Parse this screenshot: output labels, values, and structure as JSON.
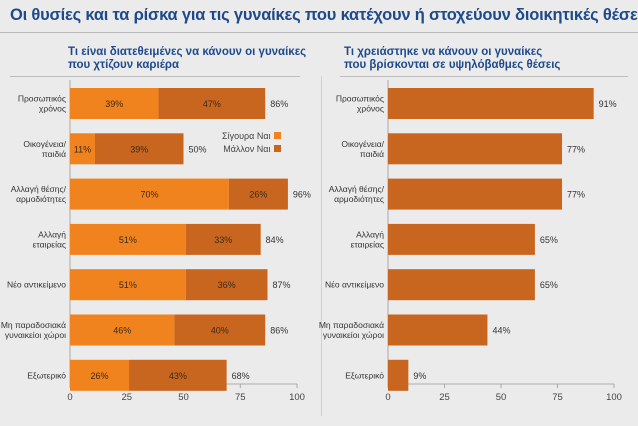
{
  "title": "Οι θυσίες και τα ρίσκα για τις γυναίκες που κατέχουν ή στοχεύουν διοικητικές θέσεις",
  "colors": {
    "primary": "#f0831e",
    "secondary": "#c8661f",
    "single": "#c8661f",
    "title": "#1e4a8c",
    "grid": "#9a9a9a"
  },
  "chart_data": [
    {
      "type": "bar",
      "orientation": "horizontal",
      "stacked": true,
      "title_lines": [
        "Τι είναι διατεθειμένες να κάνουν οι γυναίκες",
        "που χτίζουν καριέρα"
      ],
      "categories": [
        [
          "Προσωπικός",
          "χρόνος"
        ],
        [
          "Οικογένεια/",
          "παιδιά"
        ],
        [
          "Αλλαγή θέσης/",
          "αρμοδιότητες"
        ],
        [
          "Αλλαγή",
          "εταιρείας"
        ],
        [
          "Νέο αντικείμενο"
        ],
        [
          "Μη παραδοσιακά",
          "γυναικείοι χώροι"
        ],
        [
          "Εξωτερικό"
        ]
      ],
      "series": [
        {
          "name": "Σίγουρα Ναι",
          "values": [
            39,
            11,
            70,
            51,
            51,
            46,
            26
          ]
        },
        {
          "name": "Μάλλον Ναι",
          "values": [
            47,
            39,
            26,
            33,
            36,
            40,
            43
          ]
        }
      ],
      "totals": [
        86,
        50,
        96,
        84,
        87,
        86,
        68
      ],
      "xlim": [
        0,
        100
      ],
      "xticks": [
        0,
        25,
        50,
        75,
        100
      ],
      "legend": "top-right",
      "grid": false
    },
    {
      "type": "bar",
      "orientation": "horizontal",
      "stacked": false,
      "title_lines": [
        "Τι χρειάστηκε να κάνουν οι γυναίκες",
        "που βρίσκονται σε υψηλόβαθμες θέσεις"
      ],
      "categories": [
        [
          "Προσωπικός",
          "χρόνος"
        ],
        [
          "Οικογένεια/",
          "παιδιά"
        ],
        [
          "Αλλαγή θέσης/",
          "αρμοδιότητες"
        ],
        [
          "Αλλαγή",
          "εταιρείας"
        ],
        [
          "Νέο αντικείμενο"
        ],
        [
          "Μη παραδοσιακά",
          "γυναικείοι χώροι"
        ],
        [
          "Εξωτερικό"
        ]
      ],
      "values": [
        91,
        77,
        77,
        65,
        65,
        44,
        9
      ],
      "xlim": [
        0,
        100
      ],
      "xticks": [
        0,
        25,
        50,
        75,
        100
      ],
      "grid": false
    }
  ]
}
